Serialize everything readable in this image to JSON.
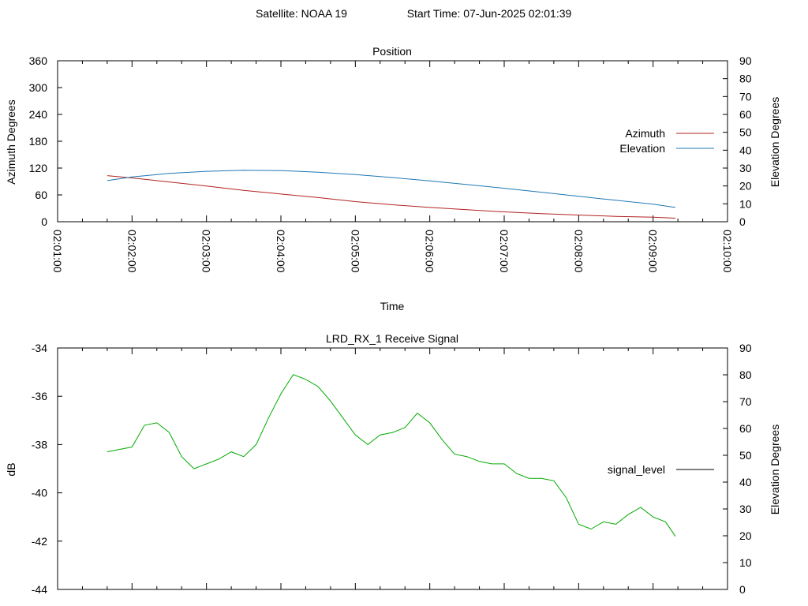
{
  "header": {
    "satellite_label": "Satellite: NOAA 19",
    "start_time_label": "Start Time: 07-Jun-2025 02:01:39"
  },
  "chart_data": [
    {
      "type": "line",
      "title": "Position",
      "xlabel": "Time",
      "ylabel": "Azimuth Degrees",
      "y2label": "Elevation Degrees",
      "xlim": [
        "02:01:00",
        "02:10:00"
      ],
      "ylim": [
        0,
        360
      ],
      "y2lim": [
        0,
        90
      ],
      "x_ticks": [
        "02:01:00",
        "02:02:00",
        "02:03:00",
        "02:04:00",
        "02:05:00",
        "02:06:00",
        "02:07:00",
        "02:08:00",
        "02:09:00",
        "02:10:00"
      ],
      "y_ticks": [
        "0",
        "60",
        "120",
        "180",
        "240",
        "300",
        "360"
      ],
      "y2_ticks": [
        "0",
        "10",
        "20",
        "30",
        "40",
        "50",
        "60",
        "70",
        "80",
        "90"
      ],
      "legend_position": "right",
      "series": [
        {
          "name": "Azimuth",
          "axis": "y",
          "color": "#b22222",
          "x": [
            "02:01:40",
            "02:02:00",
            "02:02:30",
            "02:03:00",
            "02:03:30",
            "02:04:00",
            "02:04:30",
            "02:05:00",
            "02:05:30",
            "02:06:00",
            "02:06:30",
            "02:07:00",
            "02:07:30",
            "02:08:00",
            "02:08:30",
            "02:09:00",
            "02:09:18"
          ],
          "values": [
            103,
            98,
            89,
            80,
            70,
            62,
            54,
            45,
            38,
            32,
            27,
            22,
            18,
            15,
            12,
            10,
            8
          ]
        },
        {
          "name": "Elevation",
          "axis": "y2",
          "color": "#1f77b4",
          "x": [
            "02:01:40",
            "02:02:00",
            "02:02:30",
            "02:03:00",
            "02:03:30",
            "02:04:00",
            "02:04:30",
            "02:05:00",
            "02:05:30",
            "02:06:00",
            "02:06:30",
            "02:07:00",
            "02:07:30",
            "02:08:00",
            "02:08:30",
            "02:09:00",
            "02:09:18"
          ],
          "values": [
            23,
            25,
            27,
            28.2,
            28.8,
            28.6,
            27.7,
            26.4,
            24.7,
            22.8,
            20.8,
            18.7,
            16.5,
            14.2,
            12,
            9.8,
            8
          ]
        }
      ]
    },
    {
      "type": "line",
      "title": "LRD_RX_1 Receive Signal",
      "xlabel": "",
      "ylabel": "dB",
      "y2label": "Elevation Degrees",
      "xlim": [
        "02:01:00",
        "02:10:00"
      ],
      "ylim": [
        -44,
        -34
      ],
      "y2lim": [
        0,
        90
      ],
      "y_ticks": [
        "-44",
        "-42",
        "-40",
        "-38",
        "-36",
        "-34"
      ],
      "y2_ticks": [
        "0",
        "10",
        "20",
        "30",
        "40",
        "50",
        "60",
        "70",
        "80",
        "90"
      ],
      "legend_position": "right",
      "series": [
        {
          "name": "signal_level",
          "color": "#00aa00",
          "legend_color": "#000000",
          "x": [
            "02:01:40",
            "02:01:50",
            "02:02:00",
            "02:02:10",
            "02:02:20",
            "02:02:30",
            "02:02:40",
            "02:02:50",
            "02:03:00",
            "02:03:10",
            "02:03:20",
            "02:03:30",
            "02:03:40",
            "02:03:50",
            "02:04:00",
            "02:04:10",
            "02:04:20",
            "02:04:30",
            "02:04:40",
            "02:04:50",
            "02:05:00",
            "02:05:10",
            "02:05:20",
            "02:05:30",
            "02:05:40",
            "02:05:50",
            "02:06:00",
            "02:06:10",
            "02:06:20",
            "02:06:30",
            "02:06:40",
            "02:06:50",
            "02:07:00",
            "02:07:10",
            "02:07:20",
            "02:07:30",
            "02:07:40",
            "02:07:50",
            "02:08:00",
            "02:08:10",
            "02:08:20",
            "02:08:30",
            "02:08:40",
            "02:08:50",
            "02:09:00",
            "02:09:10",
            "02:09:18"
          ],
          "values": [
            -38.3,
            -38.2,
            -38.1,
            -37.2,
            -37.1,
            -37.5,
            -38.5,
            -39.0,
            -38.8,
            -38.6,
            -38.3,
            -38.5,
            -38.0,
            -36.9,
            -35.9,
            -35.1,
            -35.3,
            -35.6,
            -36.2,
            -36.9,
            -37.6,
            -38.0,
            -37.6,
            -37.5,
            -37.3,
            -36.7,
            -37.1,
            -37.8,
            -38.4,
            -38.5,
            -38.7,
            -38.8,
            -38.8,
            -39.2,
            -39.4,
            -39.4,
            -39.5,
            -40.2,
            -41.3,
            -41.5,
            -41.2,
            -41.3,
            -40.9,
            -40.6,
            -41.0,
            -41.2,
            -41.8
          ]
        }
      ]
    }
  ]
}
